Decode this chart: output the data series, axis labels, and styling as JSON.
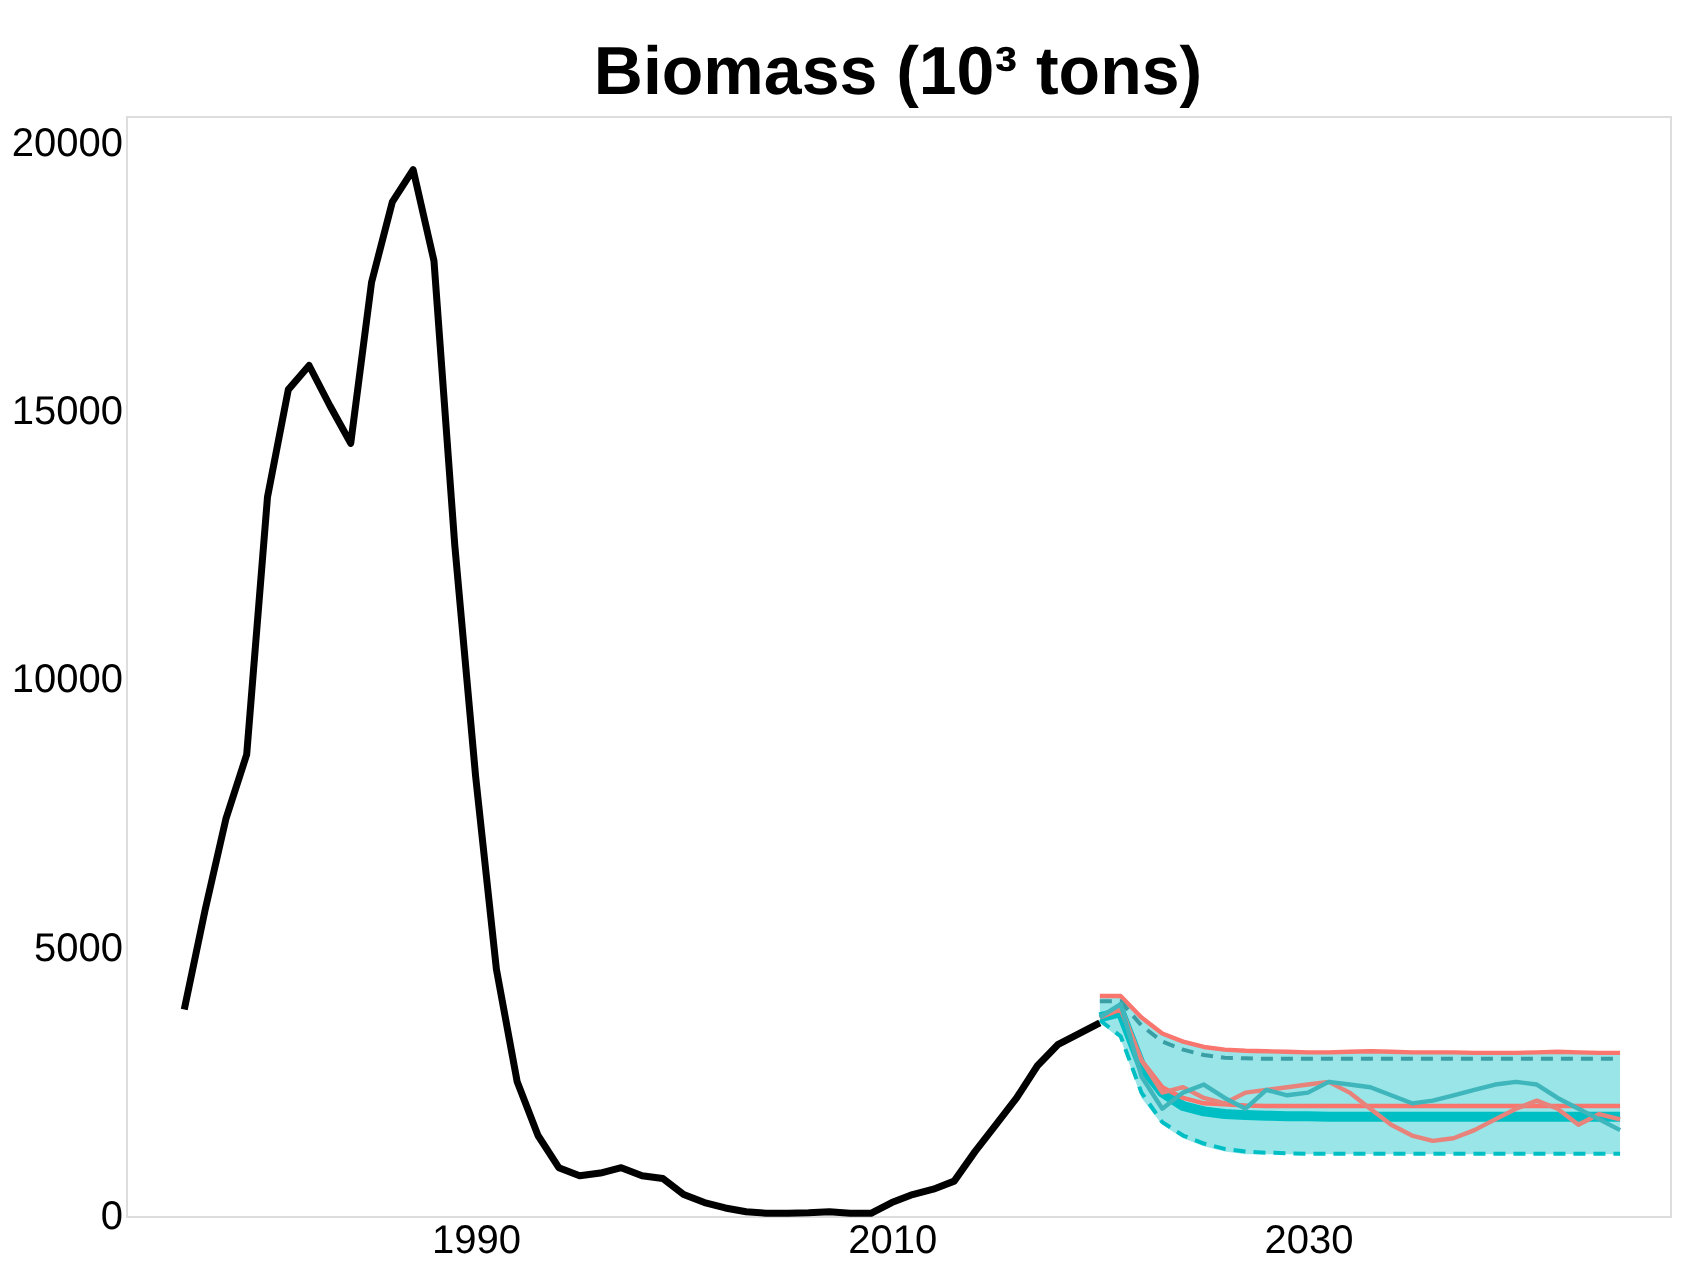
{
  "chart_data": {
    "type": "line",
    "title": "Biomass (10³ tons)",
    "xlim": [
      1973.2,
      2047.4
    ],
    "ylim": [
      0,
      20500
    ],
    "xticks": [
      1990,
      2010,
      2030
    ],
    "yticks": [
      0,
      5000,
      10000,
      15000,
      20000
    ],
    "series": [
      {
        "color": "#000000",
        "x": [
          1976,
          1977,
          1978,
          1979,
          1980,
          1981,
          1982,
          1983,
          1984,
          1985,
          1986,
          1987,
          1988,
          1989,
          1990,
          1991,
          1992,
          1993,
          1994,
          1995,
          1996,
          1997,
          1998,
          1999,
          2000,
          2001,
          2002,
          2003,
          2004,
          2005,
          2006,
          2007,
          2008,
          2009,
          2010,
          2011,
          2012,
          2013,
          2014,
          2015,
          2016,
          2017,
          2018,
          2019,
          2020
        ],
        "values": [
          3850,
          5700,
          7400,
          8600,
          13400,
          15400,
          15850,
          15100,
          14400,
          17400,
          18900,
          19500,
          17800,
          12500,
          8200,
          4600,
          2500,
          1500,
          900,
          750,
          800,
          900,
          750,
          700,
          400,
          250,
          150,
          80,
          50,
          50,
          60,
          80,
          50,
          50,
          250,
          400,
          500,
          650,
          1200,
          1700,
          2200,
          2800,
          3200,
          3400,
          3600
        ]
      },
      {
        "color": "#00bfc4",
        "x": [
          2020,
          2021,
          2022,
          2023,
          2024,
          2025,
          2026,
          2027,
          2028,
          2029,
          2030,
          2031,
          2032,
          2033,
          2034,
          2035,
          2036,
          2037,
          2038,
          2039,
          2040,
          2041,
          2042,
          2043,
          2044,
          2045
        ],
        "values": [
          3700,
          3800,
          2800,
          2300,
          2050,
          1950,
          1900,
          1880,
          1870,
          1860,
          1860,
          1850,
          1850,
          1850,
          1850,
          1850,
          1850,
          1850,
          1850,
          1850,
          1850,
          1850,
          1850,
          1850,
          1850,
          1850
        ],
        "lower": [
          3600,
          3300,
          2200,
          1700,
          1450,
          1300,
          1200,
          1150,
          1150,
          1150,
          1150,
          1150,
          1150,
          1150,
          1150,
          1150,
          1150,
          1150,
          1150,
          1150,
          1150,
          1150,
          1150,
          1150,
          1150,
          1150
        ],
        "upper": [
          4100,
          4100,
          3700,
          3400,
          3250,
          3150,
          3100,
          3080,
          3070,
          3060,
          3050,
          3050,
          3060,
          3070,
          3060,
          3050,
          3050,
          3050,
          3040,
          3040,
          3040,
          3050,
          3060,
          3050,
          3040,
          3040
        ]
      },
      {
        "color": "#f8766d",
        "x": [
          2020,
          2021,
          2022,
          2023,
          2024,
          2025,
          2026,
          2027,
          2028,
          2029,
          2030,
          2031,
          2032,
          2033,
          2034,
          2035,
          2036,
          2037,
          2038,
          2039,
          2040,
          2041,
          2042,
          2043,
          2044,
          2045
        ],
        "values": [
          3700,
          3850,
          2900,
          2400,
          2200,
          2100,
          2080,
          2060,
          2050,
          2050,
          2050,
          2050,
          2050,
          2050,
          2050,
          2050,
          2050,
          2050,
          2050,
          2050,
          2050,
          2050,
          2050,
          2050,
          2050,
          2050
        ]
      },
      {
        "color": "#f8766d",
        "x": [
          2020,
          2021,
          2022,
          2023,
          2024,
          2025,
          2026,
          2027,
          2028,
          2029,
          2030,
          2031,
          2032,
          2033,
          2034,
          2035,
          2036,
          2037,
          2038,
          2039,
          2040,
          2041,
          2042,
          2043,
          2044,
          2045
        ],
        "values": [
          4100,
          4100,
          3700,
          3400,
          3250,
          3150,
          3100,
          3080,
          3070,
          3060,
          3050,
          3050,
          3060,
          3070,
          3060,
          3050,
          3050,
          3050,
          3040,
          3040,
          3040,
          3050,
          3060,
          3050,
          3040,
          3040
        ]
      },
      {
        "color": "#3a9ea5",
        "line_style": "dashed",
        "x": [
          2020,
          2021,
          2022,
          2023,
          2024,
          2025,
          2026,
          2027,
          2028,
          2029,
          2030,
          2031,
          2032,
          2033,
          2034,
          2035,
          2036,
          2037,
          2038,
          2039,
          2040,
          2041,
          2042,
          2043,
          2044,
          2045
        ],
        "values": [
          4000,
          4000,
          3550,
          3250,
          3100,
          3000,
          2950,
          2940,
          2930,
          2930,
          2930,
          2930,
          2930,
          2930,
          2930,
          2930,
          2930,
          2930,
          2930,
          2930,
          2930,
          2930,
          2930,
          2930,
          2930,
          2930
        ]
      },
      {
        "color": "#00bfc4",
        "line_style": "dashed",
        "x": [
          2020,
          2021,
          2022,
          2023,
          2024,
          2025,
          2026,
          2027,
          2028,
          2029,
          2030,
          2031,
          2032,
          2033,
          2034,
          2035,
          2036,
          2037,
          2038,
          2039,
          2040,
          2041,
          2042,
          2043,
          2044,
          2045
        ],
        "values": [
          3650,
          3350,
          2300,
          1750,
          1500,
          1350,
          1250,
          1200,
          1180,
          1170,
          1160,
          1160,
          1160,
          1160,
          1160,
          1160,
          1160,
          1160,
          1160,
          1160,
          1160,
          1160,
          1160,
          1160,
          1160,
          1160
        ]
      },
      {
        "color": "#e8837c",
        "x": [
          2020,
          2021,
          2022,
          2023,
          2024,
          2025,
          2026,
          2027,
          2028,
          2029,
          2030,
          2031,
          2032,
          2033,
          2034,
          2035,
          2036,
          2037,
          2038,
          2039,
          2040,
          2041,
          2042,
          2043,
          2044,
          2045
        ],
        "values": [
          3700,
          3900,
          2900,
          2300,
          2400,
          2200,
          2100,
          2300,
          2350,
          2400,
          2450,
          2500,
          2300,
          2000,
          1700,
          1500,
          1400,
          1450,
          1600,
          1800,
          2000,
          2150,
          2000,
          1700,
          1900,
          1800
        ]
      },
      {
        "color": "#3fb6bc",
        "x": [
          2020,
          2021,
          2022,
          2023,
          2024,
          2025,
          2026,
          2027,
          2028,
          2029,
          2030,
          2031,
          2032,
          2033,
          2034,
          2035,
          2036,
          2037,
          2038,
          2039,
          2040,
          2041,
          2042,
          2043,
          2044,
          2045
        ],
        "values": [
          3700,
          3950,
          2600,
          2000,
          2300,
          2450,
          2200,
          2000,
          2350,
          2250,
          2300,
          2500,
          2450,
          2400,
          2250,
          2100,
          2150,
          2250,
          2350,
          2450,
          2500,
          2450,
          2200,
          2000,
          1800,
          1600
        ]
      }
    ]
  }
}
